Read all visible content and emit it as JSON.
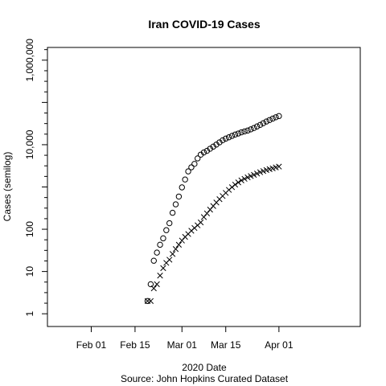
{
  "chart_data": {
    "type": "scatter",
    "title": "Iran COVID-19 Cases",
    "xlabel": "2020 Date",
    "source": "Source: John Hopkins Curated Dataset",
    "ylabel": "Cases (semilog)",
    "y_scale": "log10",
    "ylim": [
      0.5,
      2000000
    ],
    "xlim": [
      "2020-01-18",
      "2020-04-27"
    ],
    "x_ticks": [
      {
        "date": "2020-02-01",
        "label": "Feb 01"
      },
      {
        "date": "2020-02-15",
        "label": "Feb 15"
      },
      {
        "date": "2020-03-01",
        "label": "Mar 01"
      },
      {
        "date": "2020-03-15",
        "label": "Mar 15"
      },
      {
        "date": "2020-04-01",
        "label": "Apr 01"
      }
    ],
    "y_ticks": [
      {
        "value": 1,
        "label": "1"
      },
      {
        "value": 10,
        "label": "10"
      },
      {
        "value": 100,
        "label": "100"
      },
      {
        "value": 10000,
        "label": "10,000"
      },
      {
        "value": 1000000,
        "label": "1,000,000"
      }
    ],
    "y_minor_ticks": [
      1000,
      100000
    ],
    "series": [
      {
        "marker": "circle",
        "x": [
          "2020-02-19",
          "2020-02-20",
          "2020-02-21",
          "2020-02-22",
          "2020-02-23",
          "2020-02-24",
          "2020-02-25",
          "2020-02-26",
          "2020-02-27",
          "2020-02-28",
          "2020-02-29",
          "2020-03-01",
          "2020-03-02",
          "2020-03-03",
          "2020-03-04",
          "2020-03-05",
          "2020-03-06",
          "2020-03-07",
          "2020-03-08",
          "2020-03-09",
          "2020-03-10",
          "2020-03-11",
          "2020-03-12",
          "2020-03-13",
          "2020-03-14",
          "2020-03-15",
          "2020-03-16",
          "2020-03-17",
          "2020-03-18",
          "2020-03-19",
          "2020-03-20",
          "2020-03-21",
          "2020-03-22",
          "2020-03-23",
          "2020-03-24",
          "2020-03-25",
          "2020-03-26",
          "2020-03-27",
          "2020-03-28",
          "2020-03-29",
          "2020-03-30",
          "2020-03-31",
          "2020-04-01"
        ],
        "values": [
          2,
          5,
          18,
          28,
          43,
          61,
          95,
          139,
          245,
          388,
          593,
          978,
          1501,
          2336,
          2922,
          3513,
          4747,
          5823,
          6566,
          7161,
          8042,
          9000,
          10075,
          11364,
          12729,
          13938,
          14991,
          16169,
          17361,
          18407,
          19644,
          20610,
          21638,
          23049,
          24811,
          27017,
          29406,
          32332,
          35408,
          38309,
          41495,
          44605,
          47593
        ]
      },
      {
        "marker": "x",
        "x": [
          "2020-02-19",
          "2020-02-20",
          "2020-02-21",
          "2020-02-22",
          "2020-02-23",
          "2020-02-24",
          "2020-02-25",
          "2020-02-26",
          "2020-02-27",
          "2020-02-28",
          "2020-02-29",
          "2020-03-01",
          "2020-03-02",
          "2020-03-03",
          "2020-03-04",
          "2020-03-05",
          "2020-03-06",
          "2020-03-07",
          "2020-03-08",
          "2020-03-09",
          "2020-03-10",
          "2020-03-11",
          "2020-03-12",
          "2020-03-13",
          "2020-03-14",
          "2020-03-15",
          "2020-03-16",
          "2020-03-17",
          "2020-03-18",
          "2020-03-19",
          "2020-03-20",
          "2020-03-21",
          "2020-03-22",
          "2020-03-23",
          "2020-03-24",
          "2020-03-25",
          "2020-03-26",
          "2020-03-27",
          "2020-03-28",
          "2020-03-29",
          "2020-03-30",
          "2020-03-31",
          "2020-04-01"
        ],
        "values": [
          2,
          2,
          4,
          5,
          8,
          12,
          16,
          19,
          26,
          34,
          43,
          54,
          66,
          77,
          92,
          107,
          124,
          145,
          194,
          237,
          291,
          354,
          429,
          514,
          611,
          724,
          853,
          988,
          1135,
          1284,
          1433,
          1556,
          1685,
          1812,
          1934,
          2077,
          2234,
          2378,
          2517,
          2640,
          2757,
          2898,
          3036
        ]
      }
    ]
  }
}
